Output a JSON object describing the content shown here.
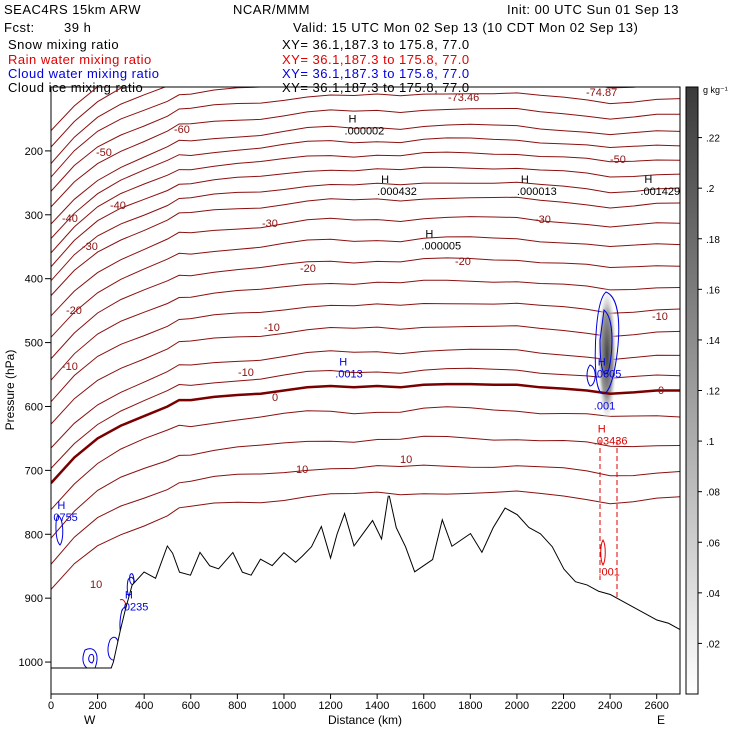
{
  "header": {
    "model": "SEAC4RS 15km ARW",
    "org": "NCAR/MMM",
    "init": "Init: 00 UTC Sun 01 Sep 13",
    "fcst_label": "Fcst:",
    "fcst_value": "39 h",
    "valid": "Valid: 15 UTC Mon 02 Sep 13 (10 CDT Mon 02 Sep 13)"
  },
  "fields": [
    {
      "name": "Snow mixing ratio",
      "xy": "XY=  36.1,187.3 to 175.8, 77.0",
      "color": "#000000"
    },
    {
      "name": "Rain water mixing ratio",
      "xy": "XY=  36.1,187.3 to 175.8, 77.0",
      "color": "#e00000"
    },
    {
      "name": "Cloud water mixing ratio",
      "xy": "XY=  36.1,187.3 to 175.8, 77.0",
      "color": "#0000e0"
    },
    {
      "name": "Cloud ice mixing ratio",
      "xy": "XY=  36.1,187.3 to 175.8, 77.0",
      "color": "#000000"
    }
  ],
  "colorbar": {
    "unit": "g kg⁻¹",
    "ticks": [
      ".02",
      ".04",
      ".06",
      ".08",
      ".1",
      ".12",
      ".14",
      ".16",
      ".18",
      ".2",
      ".22"
    ],
    "min": 0,
    "max": 0.24
  },
  "chart_data": {
    "type": "contour",
    "xlabel": "Distance (km)",
    "ylabel": "Pressure (hPa)",
    "xlim": [
      0,
      2700
    ],
    "ylim": [
      1050,
      100
    ],
    "x_ticks": [
      "0",
      "200",
      "400",
      "600",
      "800",
      "1000",
      "1200",
      "1400",
      "1600",
      "1800",
      "2000",
      "2200",
      "2400",
      "2600"
    ],
    "y_ticks": [
      "200",
      "300",
      "400",
      "500",
      "600",
      "700",
      "800",
      "900",
      "1000"
    ],
    "x_ends": {
      "left": "W",
      "right": "E"
    },
    "temperature_labels": [
      "-60",
      "-50",
      "-50",
      "-40",
      "-40",
      "-30",
      "-30",
      "-30",
      "-20",
      "-20",
      "-20",
      "-10",
      "-10",
      "-10",
      "-10",
      "0",
      "0",
      "10",
      "10",
      "10",
      "-73.46",
      "-74.87"
    ],
    "maxima": [
      {
        "mark": "H",
        "value": ".000002",
        "x": 1260,
        "p": 165,
        "color": "black"
      },
      {
        "mark": "H",
        "value": ".000432",
        "x": 1400,
        "p": 260,
        "color": "black"
      },
      {
        "mark": "H",
        "value": ".000013",
        "x": 2000,
        "p": 260,
        "color": "black"
      },
      {
        "mark": "H",
        "value": ".001429",
        "x": 2530,
        "p": 260,
        "color": "black"
      },
      {
        "mark": "H",
        "value": ".000005",
        "x": 1590,
        "p": 345,
        "color": "black"
      },
      {
        "mark": "H",
        "value": ".0013",
        "x": 1220,
        "p": 545,
        "color": "blue"
      },
      {
        "mark": "H",
        "value": ".0605",
        "x": 2330,
        "p": 545,
        "color": "blue"
      },
      {
        "mark": "",
        "value": ".001",
        "x": 2330,
        "p": 595,
        "color": "blue"
      },
      {
        "mark": "H",
        "value": ".03436",
        "x": 2330,
        "p": 650,
        "color": "red"
      },
      {
        "mark": "",
        "value": ".001",
        "x": 2350,
        "p": 855,
        "color": "red"
      },
      {
        "mark": "H",
        "value": "0755",
        "x": 10,
        "p": 770,
        "color": "blue"
      },
      {
        "mark": "H",
        "value": ".0235",
        "x": 300,
        "p": 910,
        "color": "blue"
      }
    ],
    "terrain": {
      "x": [
        0,
        200,
        260,
        270,
        300,
        320,
        350,
        400,
        450,
        500,
        520,
        550,
        600,
        640,
        680,
        720,
        780,
        820,
        860,
        900,
        950,
        1000,
        1050,
        1080,
        1120,
        1160,
        1200,
        1230,
        1260,
        1300,
        1340,
        1380,
        1420,
        1450,
        1480,
        1520,
        1560,
        1600,
        1640,
        1680,
        1720,
        1760,
        1800,
        1850,
        1900,
        1950,
        2000,
        2050,
        2100,
        2150,
        2200,
        2250,
        2300,
        2350,
        2400,
        2450,
        2500,
        2550,
        2600,
        2650,
        2700
      ],
      "p": [
        1010,
        1010,
        1010,
        1000,
        950,
        920,
        880,
        860,
        870,
        820,
        830,
        860,
        865,
        830,
        850,
        855,
        830,
        860,
        865,
        840,
        850,
        830,
        845,
        835,
        820,
        790,
        840,
        800,
        770,
        820,
        800,
        780,
        810,
        740,
        790,
        820,
        860,
        850,
        840,
        780,
        820,
        810,
        800,
        830,
        790,
        760,
        770,
        790,
        800,
        820,
        855,
        875,
        880,
        890,
        895,
        905,
        915,
        925,
        935,
        940,
        950
      ]
    },
    "freezing_level": {
      "x": [
        0,
        100,
        200,
        300,
        400,
        500,
        550,
        600,
        700,
        800,
        900,
        1000,
        1100,
        1200,
        1300,
        1400,
        1500,
        1600,
        1700,
        1800,
        1900,
        2000,
        2100,
        2200,
        2300,
        2400,
        2500,
        2600,
        2700
      ],
      "p": [
        720,
        680,
        650,
        630,
        615,
        600,
        590,
        590,
        585,
        582,
        580,
        575,
        570,
        568,
        570,
        568,
        570,
        566,
        565,
        565,
        566,
        566,
        570,
        572,
        575,
        580,
        578,
        575,
        575
      ]
    }
  }
}
